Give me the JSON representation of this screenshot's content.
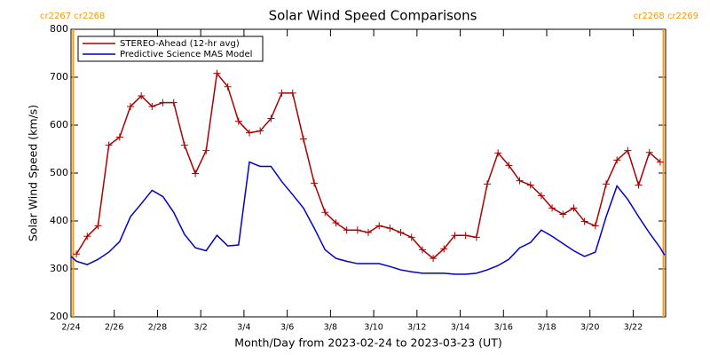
{
  "chart_data": {
    "type": "line",
    "title": "Solar Wind Speed Comparisons",
    "x_label": "Month/Day from 2023-02-24 to 2023-03-23 (UT)",
    "y_label": "Solar Wind Speed (km/s)",
    "xlim": [
      0,
      27.5
    ],
    "ylim": [
      200,
      800
    ],
    "yticks": [
      200,
      300,
      400,
      500,
      600,
      700,
      800
    ],
    "xticks": [
      {
        "value": 0,
        "label": "2/24"
      },
      {
        "value": 2,
        "label": "2/26"
      },
      {
        "value": 4,
        "label": "2/28"
      },
      {
        "value": 6,
        "label": "3/2"
      },
      {
        "value": 8,
        "label": "3/4"
      },
      {
        "value": 10,
        "label": "3/6"
      },
      {
        "value": 12,
        "label": "3/8"
      },
      {
        "value": 14,
        "label": "3/10"
      },
      {
        "value": 16,
        "label": "3/12"
      },
      {
        "value": 18,
        "label": "3/14"
      },
      {
        "value": 20,
        "label": "3/16"
      },
      {
        "value": 22,
        "label": "3/18"
      },
      {
        "value": 24,
        "label": "3/20"
      },
      {
        "value": 26,
        "label": "3/22"
      }
    ],
    "legend_position": "upper left",
    "annotations": [
      {
        "x": 0.1,
        "label": "cr2267 cr2268",
        "color": "#ff9900"
      },
      {
        "x": 27.4,
        "label": "cr2268 cr2269",
        "color": "#ff9900"
      }
    ],
    "series": [
      {
        "name": "STEREO-Ahead (12-hr avg)",
        "color": "#aa0000",
        "markers": true,
        "x": [
          0.25,
          0.75,
          1.25,
          1.75,
          2.25,
          2.75,
          3.25,
          3.75,
          4.25,
          4.75,
          5.25,
          5.75,
          6.25,
          6.75,
          7.25,
          7.75,
          8.25,
          8.75,
          9.25,
          9.75,
          10.25,
          10.75,
          11.25,
          11.75,
          12.25,
          12.75,
          13.25,
          13.75,
          14.25,
          14.75,
          15.25,
          15.75,
          16.25,
          16.75,
          17.25,
          17.75,
          18.25,
          18.75,
          19.25,
          19.75,
          20.25,
          20.75,
          21.25,
          21.75,
          22.25,
          22.75,
          23.25,
          23.75,
          24.25,
          24.75,
          25.25,
          25.75,
          26.25,
          26.75,
          27.25
        ],
        "values": [
          331,
          368,
          390,
          558,
          575,
          639,
          661,
          639,
          647,
          647,
          558,
          499,
          547,
          708,
          680,
          608,
          584,
          588,
          614,
          667,
          667,
          571,
          479,
          418,
          396,
          381,
          381,
          376,
          390,
          385,
          376,
          366,
          340,
          322,
          342,
          370,
          370,
          366,
          477,
          542,
          516,
          484,
          475,
          453,
          427,
          414,
          427,
          399,
          390,
          477,
          527,
          547,
          475,
          543,
          523
        ]
      },
      {
        "name": "Predictive Science MAS Model",
        "color": "#0000cc",
        "markers": false,
        "x": [
          0,
          0.25,
          0.75,
          1.25,
          1.75,
          2.25,
          2.75,
          3.25,
          3.75,
          4.25,
          4.75,
          5.25,
          5.75,
          6.25,
          6.75,
          7.25,
          7.75,
          8.25,
          8.75,
          9.25,
          9.75,
          10.25,
          10.75,
          11.25,
          11.75,
          12.25,
          12.75,
          13.25,
          13.75,
          14.25,
          14.75,
          15.25,
          15.75,
          16.25,
          16.75,
          17.25,
          17.75,
          18.25,
          18.75,
          19.25,
          19.75,
          20.25,
          20.75,
          21.25,
          21.75,
          22.25,
          22.75,
          23.25,
          23.75,
          24.25,
          24.75,
          25.25,
          25.75,
          26.25,
          26.75,
          27.25,
          27.45
        ],
        "values": [
          326,
          316,
          309,
          320,
          335,
          357,
          409,
          436,
          464,
          451,
          418,
          372,
          344,
          338,
          370,
          348,
          350,
          523,
          514,
          514,
          482,
          455,
          427,
          385,
          340,
          322,
          316,
          311,
          311,
          311,
          305,
          298,
          294,
          291,
          291,
          291,
          289,
          289,
          291,
          298,
          307,
          320,
          344,
          355,
          381,
          368,
          353,
          338,
          326,
          335,
          409,
          473,
          445,
          409,
          375,
          344,
          329
        ]
      }
    ]
  }
}
